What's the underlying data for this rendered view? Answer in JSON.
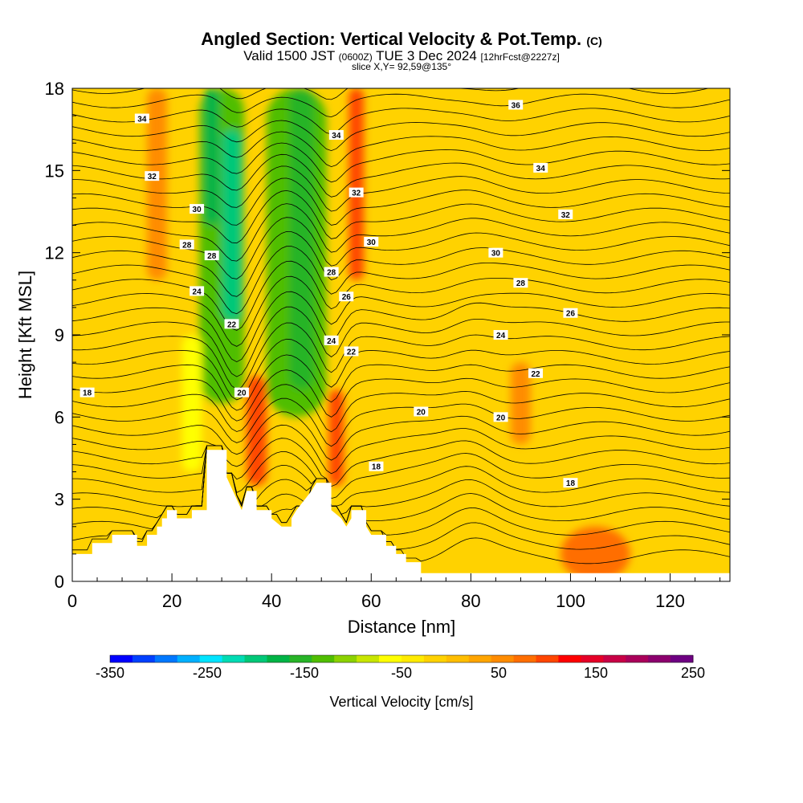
{
  "header": {
    "title": "Angled Section: Vertical Velocity & Pot.Temp.",
    "title_units": "(C)",
    "valid_a": "Valid 1500 JST",
    "valid_z": "(0600Z)",
    "valid_b": "TUE 3 Dec 2024",
    "valid_fcst": "[12hrFcst@2227z]",
    "slice": "slice X,Y= 92,59@135°"
  },
  "chart_data": {
    "type": "heatmap",
    "xlabel": "Distance [nm]",
    "ylabel": "Height [Kft MSL]",
    "xlim": [
      0,
      132
    ],
    "ylim": [
      0,
      18
    ],
    "xticks": [
      0,
      20,
      40,
      60,
      80,
      100,
      120
    ],
    "yticks": [
      0,
      3,
      6,
      9,
      12,
      15,
      18
    ],
    "colorbar": {
      "label": "Vertical Velocity [cm/s]",
      "ticks": [
        -350,
        -250,
        -150,
        -50,
        50,
        150,
        250
      ],
      "range": [
        -350,
        250
      ],
      "colors": [
        "#0000ff",
        "#0040ff",
        "#0078ff",
        "#00b0ff",
        "#00e4ff",
        "#00dcb4",
        "#00c878",
        "#00b446",
        "#28b428",
        "#50be00",
        "#8cd200",
        "#c8e600",
        "#ffff00",
        "#ffeb00",
        "#ffd200",
        "#ffbe00",
        "#ffa500",
        "#ff8c00",
        "#ff6e00",
        "#ff4600",
        "#ff0000",
        "#e60028",
        "#c80046",
        "#aa005a",
        "#8c006e",
        "#6e0082"
      ]
    },
    "terrain_top_kft": [
      [
        0,
        1.0
      ],
      [
        4,
        1.0
      ],
      [
        4,
        1.4
      ],
      [
        8,
        1.4
      ],
      [
        8,
        1.7
      ],
      [
        13,
        1.7
      ],
      [
        13,
        1.3
      ],
      [
        15,
        1.3
      ],
      [
        15,
        1.7
      ],
      [
        17,
        1.7
      ],
      [
        17,
        2.0
      ],
      [
        18,
        2.0
      ],
      [
        18,
        2.3
      ],
      [
        19,
        2.3
      ],
      [
        19,
        2.6
      ],
      [
        21,
        2.6
      ],
      [
        21,
        2.3
      ],
      [
        24,
        2.3
      ],
      [
        24,
        2.6
      ],
      [
        27,
        2.6
      ],
      [
        27,
        4.8
      ],
      [
        31,
        4.8
      ],
      [
        31,
        3.8
      ],
      [
        33,
        3.0
      ],
      [
        34,
        2.6
      ],
      [
        35,
        3.3
      ],
      [
        37,
        3.3
      ],
      [
        37,
        2.6
      ],
      [
        40,
        2.6
      ],
      [
        40,
        2.3
      ],
      [
        42,
        2.0
      ],
      [
        44,
        2.0
      ],
      [
        44,
        2.3
      ],
      [
        45,
        2.6
      ],
      [
        48,
        3.3
      ],
      [
        49,
        3.6
      ],
      [
        52,
        3.6
      ],
      [
        52,
        2.6
      ],
      [
        54,
        2.3
      ],
      [
        55,
        2.0
      ],
      [
        56,
        2.3
      ],
      [
        56,
        2.6
      ],
      [
        59,
        2.6
      ],
      [
        59,
        2.0
      ],
      [
        60,
        1.7
      ],
      [
        63,
        1.7
      ],
      [
        63,
        1.3
      ],
      [
        65,
        1.3
      ],
      [
        65,
        1.0
      ],
      [
        67,
        1.0
      ],
      [
        67,
        0.7
      ],
      [
        70,
        0.7
      ],
      [
        70,
        0.3
      ],
      [
        132,
        0.3
      ]
    ],
    "vv_features": [
      {
        "x": 45,
        "y_bottom": 6.0,
        "y_top": 18,
        "width": 12,
        "value": -120
      },
      {
        "x": 46,
        "y_bottom": 7.0,
        "y_top": 18,
        "width": 5,
        "value": -160
      },
      {
        "x": 30,
        "y_bottom": 6.5,
        "y_top": 18,
        "width": 9,
        "value": -140
      },
      {
        "x": 32,
        "y_bottom": 9.5,
        "y_top": 16.5,
        "width": 4,
        "value": -190
      },
      {
        "x": 28,
        "y_bottom": 13,
        "y_top": 18,
        "width": 3,
        "value": -170
      },
      {
        "x": 37,
        "y_bottom": 3.5,
        "y_top": 7.5,
        "width": 4,
        "value": 110
      },
      {
        "x": 53,
        "y_bottom": 3.5,
        "y_top": 7,
        "width": 3,
        "value": 110
      },
      {
        "x": 57,
        "y_bottom": 11,
        "y_top": 18,
        "width": 3,
        "value": 90
      },
      {
        "x": 17,
        "y_bottom": 11,
        "y_top": 18,
        "width": 4,
        "value": 60
      },
      {
        "x": 24,
        "y_bottom": 4,
        "y_top": 9,
        "width": 4,
        "value": -60
      },
      {
        "x": 66,
        "y_bottom": 0,
        "y_top": 18,
        "width": 6,
        "value": -20
      },
      {
        "x": 75,
        "y_bottom": 2,
        "y_top": 9,
        "width": 6,
        "value": -15
      },
      {
        "x": 105,
        "y_bottom": 0,
        "y_top": 2,
        "width": 14,
        "value": 70
      },
      {
        "x": 112,
        "y_bottom": 7,
        "y_top": 18,
        "width": 5,
        "value": -10
      },
      {
        "x": 90,
        "y_bottom": 5,
        "y_top": 8,
        "width": 4,
        "value": 60
      }
    ],
    "isentrope_labels": [
      {
        "x": 14,
        "y": 16.9,
        "v": "34"
      },
      {
        "x": 89,
        "y": 17.4,
        "v": "36"
      },
      {
        "x": 16,
        "y": 14.8,
        "v": "32"
      },
      {
        "x": 53,
        "y": 16.3,
        "v": "34"
      },
      {
        "x": 94,
        "y": 15.1,
        "v": "34"
      },
      {
        "x": 25,
        "y": 13.6,
        "v": "30"
      },
      {
        "x": 57,
        "y": 14.2,
        "v": "32"
      },
      {
        "x": 99,
        "y": 13.4,
        "v": "32"
      },
      {
        "x": 23,
        "y": 12.3,
        "v": "28"
      },
      {
        "x": 28,
        "y": 11.9,
        "v": "28"
      },
      {
        "x": 60,
        "y": 12.4,
        "v": "30"
      },
      {
        "x": 85,
        "y": 12.0,
        "v": "30"
      },
      {
        "x": 25,
        "y": 10.6,
        "v": "24"
      },
      {
        "x": 52,
        "y": 11.3,
        "v": "28"
      },
      {
        "x": 55,
        "y": 10.4,
        "v": "26"
      },
      {
        "x": 90,
        "y": 10.9,
        "v": "28"
      },
      {
        "x": 100,
        "y": 9.8,
        "v": "26"
      },
      {
        "x": 32,
        "y": 9.4,
        "v": "22"
      },
      {
        "x": 52,
        "y": 8.8,
        "v": "24"
      },
      {
        "x": 56,
        "y": 8.4,
        "v": "22"
      },
      {
        "x": 86,
        "y": 9.0,
        "v": "24"
      },
      {
        "x": 93,
        "y": 7.6,
        "v": "22"
      },
      {
        "x": 3,
        "y": 6.9,
        "v": "18"
      },
      {
        "x": 34,
        "y": 6.9,
        "v": "20"
      },
      {
        "x": 70,
        "y": 6.2,
        "v": "20"
      },
      {
        "x": 86,
        "y": 6.0,
        "v": "20"
      },
      {
        "x": 61,
        "y": 4.2,
        "v": "18"
      },
      {
        "x": 100,
        "y": 3.6,
        "v": "18"
      }
    ]
  }
}
